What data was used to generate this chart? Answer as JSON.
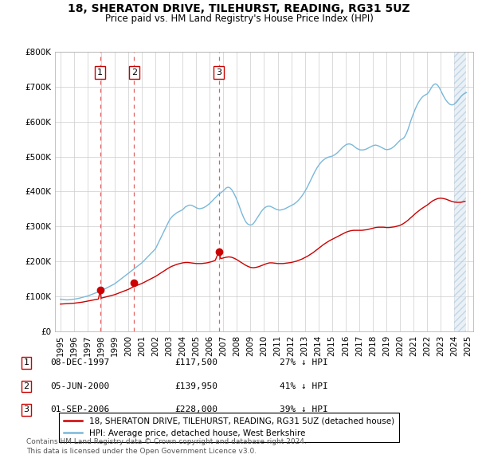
{
  "title": "18, SHERATON DRIVE, TILEHURST, READING, RG31 5UZ",
  "subtitle": "Price paid vs. HM Land Registry's House Price Index (HPI)",
  "legend_line1": "18, SHERATON DRIVE, TILEHURST, READING, RG31 5UZ (detached house)",
  "legend_line2": "HPI: Average price, detached house, West Berkshire",
  "footer1": "Contains HM Land Registry data © Crown copyright and database right 2024.",
  "footer2": "This data is licensed under the Open Government Licence v3.0.",
  "transactions": [
    {
      "num": 1,
      "date": "08-DEC-1997",
      "price": 117500,
      "pct": "27% ↓ HPI",
      "year": 1997.93
    },
    {
      "num": 2,
      "date": "05-JUN-2000",
      "price": 139950,
      "pct": "41% ↓ HPI",
      "year": 2000.42
    },
    {
      "num": 3,
      "date": "01-SEP-2006",
      "price": 228000,
      "pct": "39% ↓ HPI",
      "year": 2006.67
    }
  ],
  "hpi_color": "#7ab8d9",
  "price_color": "#cc0000",
  "dashed_color": "#e06060",
  "ylim": [
    0,
    800000
  ],
  "yticks": [
    0,
    100000,
    200000,
    300000,
    400000,
    500000,
    600000,
    700000,
    800000
  ],
  "xlim_start": 1994.6,
  "xlim_end": 2025.4,
  "xticks": [
    1995,
    1996,
    1997,
    1998,
    1999,
    2000,
    2001,
    2002,
    2003,
    2004,
    2005,
    2006,
    2007,
    2008,
    2009,
    2010,
    2011,
    2012,
    2013,
    2014,
    2015,
    2016,
    2017,
    2018,
    2019,
    2020,
    2021,
    2022,
    2023,
    2024,
    2025
  ],
  "hpi_data": [
    [
      1995.0,
      92000
    ],
    [
      1995.1,
      91500
    ],
    [
      1995.2,
      91000
    ],
    [
      1995.3,
      90500
    ],
    [
      1995.4,
      90200
    ],
    [
      1995.5,
      90000
    ],
    [
      1995.6,
      90200
    ],
    [
      1995.7,
      90500
    ],
    [
      1995.8,
      91000
    ],
    [
      1995.9,
      91500
    ],
    [
      1996.0,
      92000
    ],
    [
      1996.1,
      92500
    ],
    [
      1996.2,
      93200
    ],
    [
      1996.3,
      94000
    ],
    [
      1996.4,
      95000
    ],
    [
      1996.5,
      96000
    ],
    [
      1996.6,
      97000
    ],
    [
      1996.7,
      98000
    ],
    [
      1996.8,
      99000
    ],
    [
      1996.9,
      100000
    ],
    [
      1997.0,
      101000
    ],
    [
      1997.1,
      102500
    ],
    [
      1997.2,
      104000
    ],
    [
      1997.3,
      105500
    ],
    [
      1997.4,
      107000
    ],
    [
      1997.5,
      108500
    ],
    [
      1997.6,
      110000
    ],
    [
      1997.7,
      111500
    ],
    [
      1997.8,
      113000
    ],
    [
      1997.9,
      114500
    ],
    [
      1998.0,
      116000
    ],
    [
      1998.1,
      118000
    ],
    [
      1998.2,
      120000
    ],
    [
      1998.3,
      122000
    ],
    [
      1998.4,
      124000
    ],
    [
      1998.5,
      126000
    ],
    [
      1998.6,
      128000
    ],
    [
      1998.7,
      130000
    ],
    [
      1998.8,
      132000
    ],
    [
      1998.9,
      134000
    ],
    [
      1999.0,
      136000
    ],
    [
      1999.1,
      139000
    ],
    [
      1999.2,
      142000
    ],
    [
      1999.3,
      145000
    ],
    [
      1999.4,
      148000
    ],
    [
      1999.5,
      151000
    ],
    [
      1999.6,
      154000
    ],
    [
      1999.7,
      157000
    ],
    [
      1999.8,
      160000
    ],
    [
      1999.9,
      163000
    ],
    [
      2000.0,
      166000
    ],
    [
      2000.1,
      169000
    ],
    [
      2000.2,
      172000
    ],
    [
      2000.3,
      175000
    ],
    [
      2000.4,
      178000
    ],
    [
      2000.5,
      181000
    ],
    [
      2000.6,
      184000
    ],
    [
      2000.7,
      187000
    ],
    [
      2000.8,
      190000
    ],
    [
      2000.9,
      193000
    ],
    [
      2001.0,
      196000
    ],
    [
      2001.1,
      200000
    ],
    [
      2001.2,
      204000
    ],
    [
      2001.3,
      208000
    ],
    [
      2001.4,
      212000
    ],
    [
      2001.5,
      216000
    ],
    [
      2001.6,
      220000
    ],
    [
      2001.7,
      224000
    ],
    [
      2001.8,
      228000
    ],
    [
      2001.9,
      232000
    ],
    [
      2002.0,
      236000
    ],
    [
      2002.1,
      244000
    ],
    [
      2002.2,
      252000
    ],
    [
      2002.3,
      260000
    ],
    [
      2002.4,
      268000
    ],
    [
      2002.5,
      276000
    ],
    [
      2002.6,
      284000
    ],
    [
      2002.7,
      292000
    ],
    [
      2002.8,
      300000
    ],
    [
      2002.9,
      308000
    ],
    [
      2003.0,
      316000
    ],
    [
      2003.1,
      322000
    ],
    [
      2003.2,
      327000
    ],
    [
      2003.3,
      331000
    ],
    [
      2003.4,
      334000
    ],
    [
      2003.5,
      337000
    ],
    [
      2003.6,
      340000
    ],
    [
      2003.7,
      342000
    ],
    [
      2003.8,
      344000
    ],
    [
      2003.9,
      346000
    ],
    [
      2004.0,
      348000
    ],
    [
      2004.1,
      352000
    ],
    [
      2004.2,
      356000
    ],
    [
      2004.3,
      358000
    ],
    [
      2004.4,
      360000
    ],
    [
      2004.5,
      361000
    ],
    [
      2004.6,
      361000
    ],
    [
      2004.7,
      360000
    ],
    [
      2004.8,
      358000
    ],
    [
      2004.9,
      356000
    ],
    [
      2005.0,
      354000
    ],
    [
      2005.1,
      352000
    ],
    [
      2005.2,
      351000
    ],
    [
      2005.3,
      351000
    ],
    [
      2005.4,
      352000
    ],
    [
      2005.5,
      353000
    ],
    [
      2005.6,
      355000
    ],
    [
      2005.7,
      357000
    ],
    [
      2005.8,
      360000
    ],
    [
      2005.9,
      363000
    ],
    [
      2006.0,
      366000
    ],
    [
      2006.1,
      370000
    ],
    [
      2006.2,
      374000
    ],
    [
      2006.3,
      378000
    ],
    [
      2006.4,
      382000
    ],
    [
      2006.5,
      386000
    ],
    [
      2006.6,
      390000
    ],
    [
      2006.7,
      393000
    ],
    [
      2006.8,
      396000
    ],
    [
      2006.9,
      399000
    ],
    [
      2007.0,
      402000
    ],
    [
      2007.1,
      406000
    ],
    [
      2007.2,
      410000
    ],
    [
      2007.3,
      412000
    ],
    [
      2007.4,
      412000
    ],
    [
      2007.5,
      410000
    ],
    [
      2007.6,
      406000
    ],
    [
      2007.7,
      400000
    ],
    [
      2007.8,
      393000
    ],
    [
      2007.9,
      385000
    ],
    [
      2008.0,
      376000
    ],
    [
      2008.1,
      366000
    ],
    [
      2008.2,
      355000
    ],
    [
      2008.3,
      344000
    ],
    [
      2008.4,
      334000
    ],
    [
      2008.5,
      325000
    ],
    [
      2008.6,
      317000
    ],
    [
      2008.7,
      311000
    ],
    [
      2008.8,
      307000
    ],
    [
      2008.9,
      305000
    ],
    [
      2009.0,
      304000
    ],
    [
      2009.1,
      305000
    ],
    [
      2009.2,
      308000
    ],
    [
      2009.3,
      313000
    ],
    [
      2009.4,
      319000
    ],
    [
      2009.5,
      325000
    ],
    [
      2009.6,
      331000
    ],
    [
      2009.7,
      337000
    ],
    [
      2009.8,
      343000
    ],
    [
      2009.9,
      348000
    ],
    [
      2010.0,
      352000
    ],
    [
      2010.1,
      355000
    ],
    [
      2010.2,
      357000
    ],
    [
      2010.3,
      358000
    ],
    [
      2010.4,
      358000
    ],
    [
      2010.5,
      357000
    ],
    [
      2010.6,
      355000
    ],
    [
      2010.7,
      353000
    ],
    [
      2010.8,
      351000
    ],
    [
      2010.9,
      349000
    ],
    [
      2011.0,
      348000
    ],
    [
      2011.1,
      347000
    ],
    [
      2011.2,
      347000
    ],
    [
      2011.3,
      348000
    ],
    [
      2011.4,
      349000
    ],
    [
      2011.5,
      350000
    ],
    [
      2011.6,
      352000
    ],
    [
      2011.7,
      354000
    ],
    [
      2011.8,
      356000
    ],
    [
      2011.9,
      358000
    ],
    [
      2012.0,
      360000
    ],
    [
      2012.1,
      362000
    ],
    [
      2012.2,
      364000
    ],
    [
      2012.3,
      367000
    ],
    [
      2012.4,
      370000
    ],
    [
      2012.5,
      374000
    ],
    [
      2012.6,
      378000
    ],
    [
      2012.7,
      383000
    ],
    [
      2012.8,
      388000
    ],
    [
      2012.9,
      394000
    ],
    [
      2013.0,
      400000
    ],
    [
      2013.1,
      407000
    ],
    [
      2013.2,
      414000
    ],
    [
      2013.3,
      422000
    ],
    [
      2013.4,
      430000
    ],
    [
      2013.5,
      438000
    ],
    [
      2013.6,
      446000
    ],
    [
      2013.7,
      454000
    ],
    [
      2013.8,
      461000
    ],
    [
      2013.9,
      468000
    ],
    [
      2014.0,
      474000
    ],
    [
      2014.1,
      479000
    ],
    [
      2014.2,
      484000
    ],
    [
      2014.3,
      488000
    ],
    [
      2014.4,
      491000
    ],
    [
      2014.5,
      494000
    ],
    [
      2014.6,
      496000
    ],
    [
      2014.7,
      498000
    ],
    [
      2014.8,
      499000
    ],
    [
      2014.9,
      500000
    ],
    [
      2015.0,
      501000
    ],
    [
      2015.1,
      503000
    ],
    [
      2015.2,
      505000
    ],
    [
      2015.3,
      508000
    ],
    [
      2015.4,
      511000
    ],
    [
      2015.5,
      515000
    ],
    [
      2015.6,
      519000
    ],
    [
      2015.7,
      523000
    ],
    [
      2015.8,
      527000
    ],
    [
      2015.9,
      530000
    ],
    [
      2016.0,
      533000
    ],
    [
      2016.1,
      535000
    ],
    [
      2016.2,
      536000
    ],
    [
      2016.3,
      536000
    ],
    [
      2016.4,
      535000
    ],
    [
      2016.5,
      533000
    ],
    [
      2016.6,
      530000
    ],
    [
      2016.7,
      527000
    ],
    [
      2016.8,
      524000
    ],
    [
      2016.9,
      522000
    ],
    [
      2017.0,
      520000
    ],
    [
      2017.1,
      519000
    ],
    [
      2017.2,
      519000
    ],
    [
      2017.3,
      519000
    ],
    [
      2017.4,
      520000
    ],
    [
      2017.5,
      521000
    ],
    [
      2017.6,
      523000
    ],
    [
      2017.7,
      525000
    ],
    [
      2017.8,
      527000
    ],
    [
      2017.9,
      529000
    ],
    [
      2018.0,
      531000
    ],
    [
      2018.1,
      532000
    ],
    [
      2018.2,
      533000
    ],
    [
      2018.3,
      532000
    ],
    [
      2018.4,
      531000
    ],
    [
      2018.5,
      529000
    ],
    [
      2018.6,
      527000
    ],
    [
      2018.7,
      525000
    ],
    [
      2018.8,
      523000
    ],
    [
      2018.9,
      521000
    ],
    [
      2019.0,
      520000
    ],
    [
      2019.1,
      520000
    ],
    [
      2019.2,
      521000
    ],
    [
      2019.3,
      522000
    ],
    [
      2019.4,
      524000
    ],
    [
      2019.5,
      527000
    ],
    [
      2019.6,
      530000
    ],
    [
      2019.7,
      534000
    ],
    [
      2019.8,
      538000
    ],
    [
      2019.9,
      542000
    ],
    [
      2020.0,
      546000
    ],
    [
      2020.1,
      549000
    ],
    [
      2020.2,
      551000
    ],
    [
      2020.3,
      554000
    ],
    [
      2020.4,
      560000
    ],
    [
      2020.5,
      568000
    ],
    [
      2020.6,
      578000
    ],
    [
      2020.7,
      590000
    ],
    [
      2020.8,
      602000
    ],
    [
      2020.9,
      613000
    ],
    [
      2021.0,
      623000
    ],
    [
      2021.1,
      633000
    ],
    [
      2021.2,
      642000
    ],
    [
      2021.3,
      650000
    ],
    [
      2021.4,
      657000
    ],
    [
      2021.5,
      663000
    ],
    [
      2021.6,
      668000
    ],
    [
      2021.7,
      672000
    ],
    [
      2021.8,
      675000
    ],
    [
      2021.9,
      677000
    ],
    [
      2022.0,
      679000
    ],
    [
      2022.1,
      683000
    ],
    [
      2022.2,
      689000
    ],
    [
      2022.3,
      696000
    ],
    [
      2022.4,
      702000
    ],
    [
      2022.5,
      706000
    ],
    [
      2022.6,
      708000
    ],
    [
      2022.7,
      707000
    ],
    [
      2022.8,
      703000
    ],
    [
      2022.9,
      697000
    ],
    [
      2023.0,
      690000
    ],
    [
      2023.1,
      682000
    ],
    [
      2023.2,
      674000
    ],
    [
      2023.3,
      667000
    ],
    [
      2023.4,
      661000
    ],
    [
      2023.5,
      656000
    ],
    [
      2023.6,
      652000
    ],
    [
      2023.7,
      649000
    ],
    [
      2023.8,
      648000
    ],
    [
      2023.9,
      648000
    ],
    [
      2024.0,
      650000
    ],
    [
      2024.1,
      653000
    ],
    [
      2024.2,
      657000
    ],
    [
      2024.3,
      662000
    ],
    [
      2024.4,
      667000
    ],
    [
      2024.5,
      672000
    ],
    [
      2024.6,
      676000
    ],
    [
      2024.7,
      679000
    ],
    [
      2024.8,
      681000
    ],
    [
      2024.9,
      683000
    ]
  ],
  "price_data": [
    [
      1995.0,
      78000
    ],
    [
      1995.2,
      78500
    ],
    [
      1995.4,
      79000
    ],
    [
      1995.6,
      79500
    ],
    [
      1995.8,
      80000
    ],
    [
      1996.0,
      80500
    ],
    [
      1996.2,
      81500
    ],
    [
      1996.4,
      82500
    ],
    [
      1996.6,
      83500
    ],
    [
      1996.8,
      85000
    ],
    [
      1997.0,
      86500
    ],
    [
      1997.2,
      88000
    ],
    [
      1997.4,
      89500
    ],
    [
      1997.6,
      91000
    ],
    [
      1997.8,
      92500
    ],
    [
      1997.93,
      117500
    ],
    [
      1998.0,
      95000
    ],
    [
      1998.2,
      97000
    ],
    [
      1998.4,
      99000
    ],
    [
      1998.6,
      101000
    ],
    [
      1998.8,
      103000
    ],
    [
      1999.0,
      105000
    ],
    [
      1999.2,
      108000
    ],
    [
      1999.4,
      111000
    ],
    [
      1999.6,
      114000
    ],
    [
      1999.8,
      117000
    ],
    [
      2000.0,
      120000
    ],
    [
      2000.2,
      124000
    ],
    [
      2000.4,
      128000
    ],
    [
      2000.42,
      139950
    ],
    [
      2000.6,
      131000
    ],
    [
      2000.8,
      134000
    ],
    [
      2001.0,
      137000
    ],
    [
      2001.2,
      141000
    ],
    [
      2001.4,
      145000
    ],
    [
      2001.6,
      149000
    ],
    [
      2001.8,
      153000
    ],
    [
      2002.0,
      157000
    ],
    [
      2002.2,
      162000
    ],
    [
      2002.4,
      167000
    ],
    [
      2002.6,
      172000
    ],
    [
      2002.8,
      177000
    ],
    [
      2003.0,
      182000
    ],
    [
      2003.2,
      186000
    ],
    [
      2003.4,
      189000
    ],
    [
      2003.6,
      192000
    ],
    [
      2003.8,
      194000
    ],
    [
      2004.0,
      196000
    ],
    [
      2004.2,
      197000
    ],
    [
      2004.4,
      197000
    ],
    [
      2004.6,
      196000
    ],
    [
      2004.8,
      195000
    ],
    [
      2005.0,
      194000
    ],
    [
      2005.2,
      194000
    ],
    [
      2005.4,
      194000
    ],
    [
      2005.6,
      195000
    ],
    [
      2005.8,
      196000
    ],
    [
      2006.0,
      198000
    ],
    [
      2006.2,
      200000
    ],
    [
      2006.4,
      203000
    ],
    [
      2006.67,
      228000
    ],
    [
      2006.8,
      208000
    ],
    [
      2007.0,
      210000
    ],
    [
      2007.2,
      212000
    ],
    [
      2007.4,
      213000
    ],
    [
      2007.6,
      212000
    ],
    [
      2007.8,
      209000
    ],
    [
      2008.0,
      205000
    ],
    [
      2008.2,
      200000
    ],
    [
      2008.4,
      195000
    ],
    [
      2008.6,
      190000
    ],
    [
      2008.8,
      186000
    ],
    [
      2009.0,
      183000
    ],
    [
      2009.2,
      182000
    ],
    [
      2009.4,
      183000
    ],
    [
      2009.6,
      185000
    ],
    [
      2009.8,
      188000
    ],
    [
      2010.0,
      191000
    ],
    [
      2010.2,
      194000
    ],
    [
      2010.4,
      196000
    ],
    [
      2010.6,
      196000
    ],
    [
      2010.8,
      195000
    ],
    [
      2011.0,
      194000
    ],
    [
      2011.2,
      194000
    ],
    [
      2011.4,
      194000
    ],
    [
      2011.6,
      195000
    ],
    [
      2011.8,
      196000
    ],
    [
      2012.0,
      197000
    ],
    [
      2012.2,
      199000
    ],
    [
      2012.4,
      201000
    ],
    [
      2012.6,
      204000
    ],
    [
      2012.8,
      207000
    ],
    [
      2013.0,
      211000
    ],
    [
      2013.2,
      215000
    ],
    [
      2013.4,
      220000
    ],
    [
      2013.6,
      225000
    ],
    [
      2013.8,
      231000
    ],
    [
      2014.0,
      237000
    ],
    [
      2014.2,
      243000
    ],
    [
      2014.4,
      249000
    ],
    [
      2014.6,
      254000
    ],
    [
      2014.8,
      259000
    ],
    [
      2015.0,
      263000
    ],
    [
      2015.2,
      267000
    ],
    [
      2015.4,
      271000
    ],
    [
      2015.6,
      275000
    ],
    [
      2015.8,
      279000
    ],
    [
      2016.0,
      283000
    ],
    [
      2016.2,
      286000
    ],
    [
      2016.4,
      288000
    ],
    [
      2016.6,
      289000
    ],
    [
      2016.8,
      289000
    ],
    [
      2017.0,
      289000
    ],
    [
      2017.2,
      289000
    ],
    [
      2017.4,
      290000
    ],
    [
      2017.6,
      291000
    ],
    [
      2017.8,
      293000
    ],
    [
      2018.0,
      295000
    ],
    [
      2018.2,
      297000
    ],
    [
      2018.4,
      298000
    ],
    [
      2018.6,
      298000
    ],
    [
      2018.8,
      298000
    ],
    [
      2019.0,
      297000
    ],
    [
      2019.2,
      297000
    ],
    [
      2019.4,
      298000
    ],
    [
      2019.6,
      299000
    ],
    [
      2019.8,
      301000
    ],
    [
      2020.0,
      303000
    ],
    [
      2020.2,
      307000
    ],
    [
      2020.4,
      312000
    ],
    [
      2020.6,
      318000
    ],
    [
      2020.8,
      325000
    ],
    [
      2021.0,
      332000
    ],
    [
      2021.2,
      339000
    ],
    [
      2021.4,
      345000
    ],
    [
      2021.6,
      351000
    ],
    [
      2021.8,
      356000
    ],
    [
      2022.0,
      361000
    ],
    [
      2022.2,
      367000
    ],
    [
      2022.4,
      373000
    ],
    [
      2022.6,
      377000
    ],
    [
      2022.8,
      380000
    ],
    [
      2023.0,
      381000
    ],
    [
      2023.2,
      380000
    ],
    [
      2023.4,
      378000
    ],
    [
      2023.6,
      375000
    ],
    [
      2023.8,
      372000
    ],
    [
      2024.0,
      370000
    ],
    [
      2024.2,
      369000
    ],
    [
      2024.4,
      369000
    ],
    [
      2024.6,
      370000
    ],
    [
      2024.8,
      372000
    ]
  ],
  "hatch_start": 2024.0
}
